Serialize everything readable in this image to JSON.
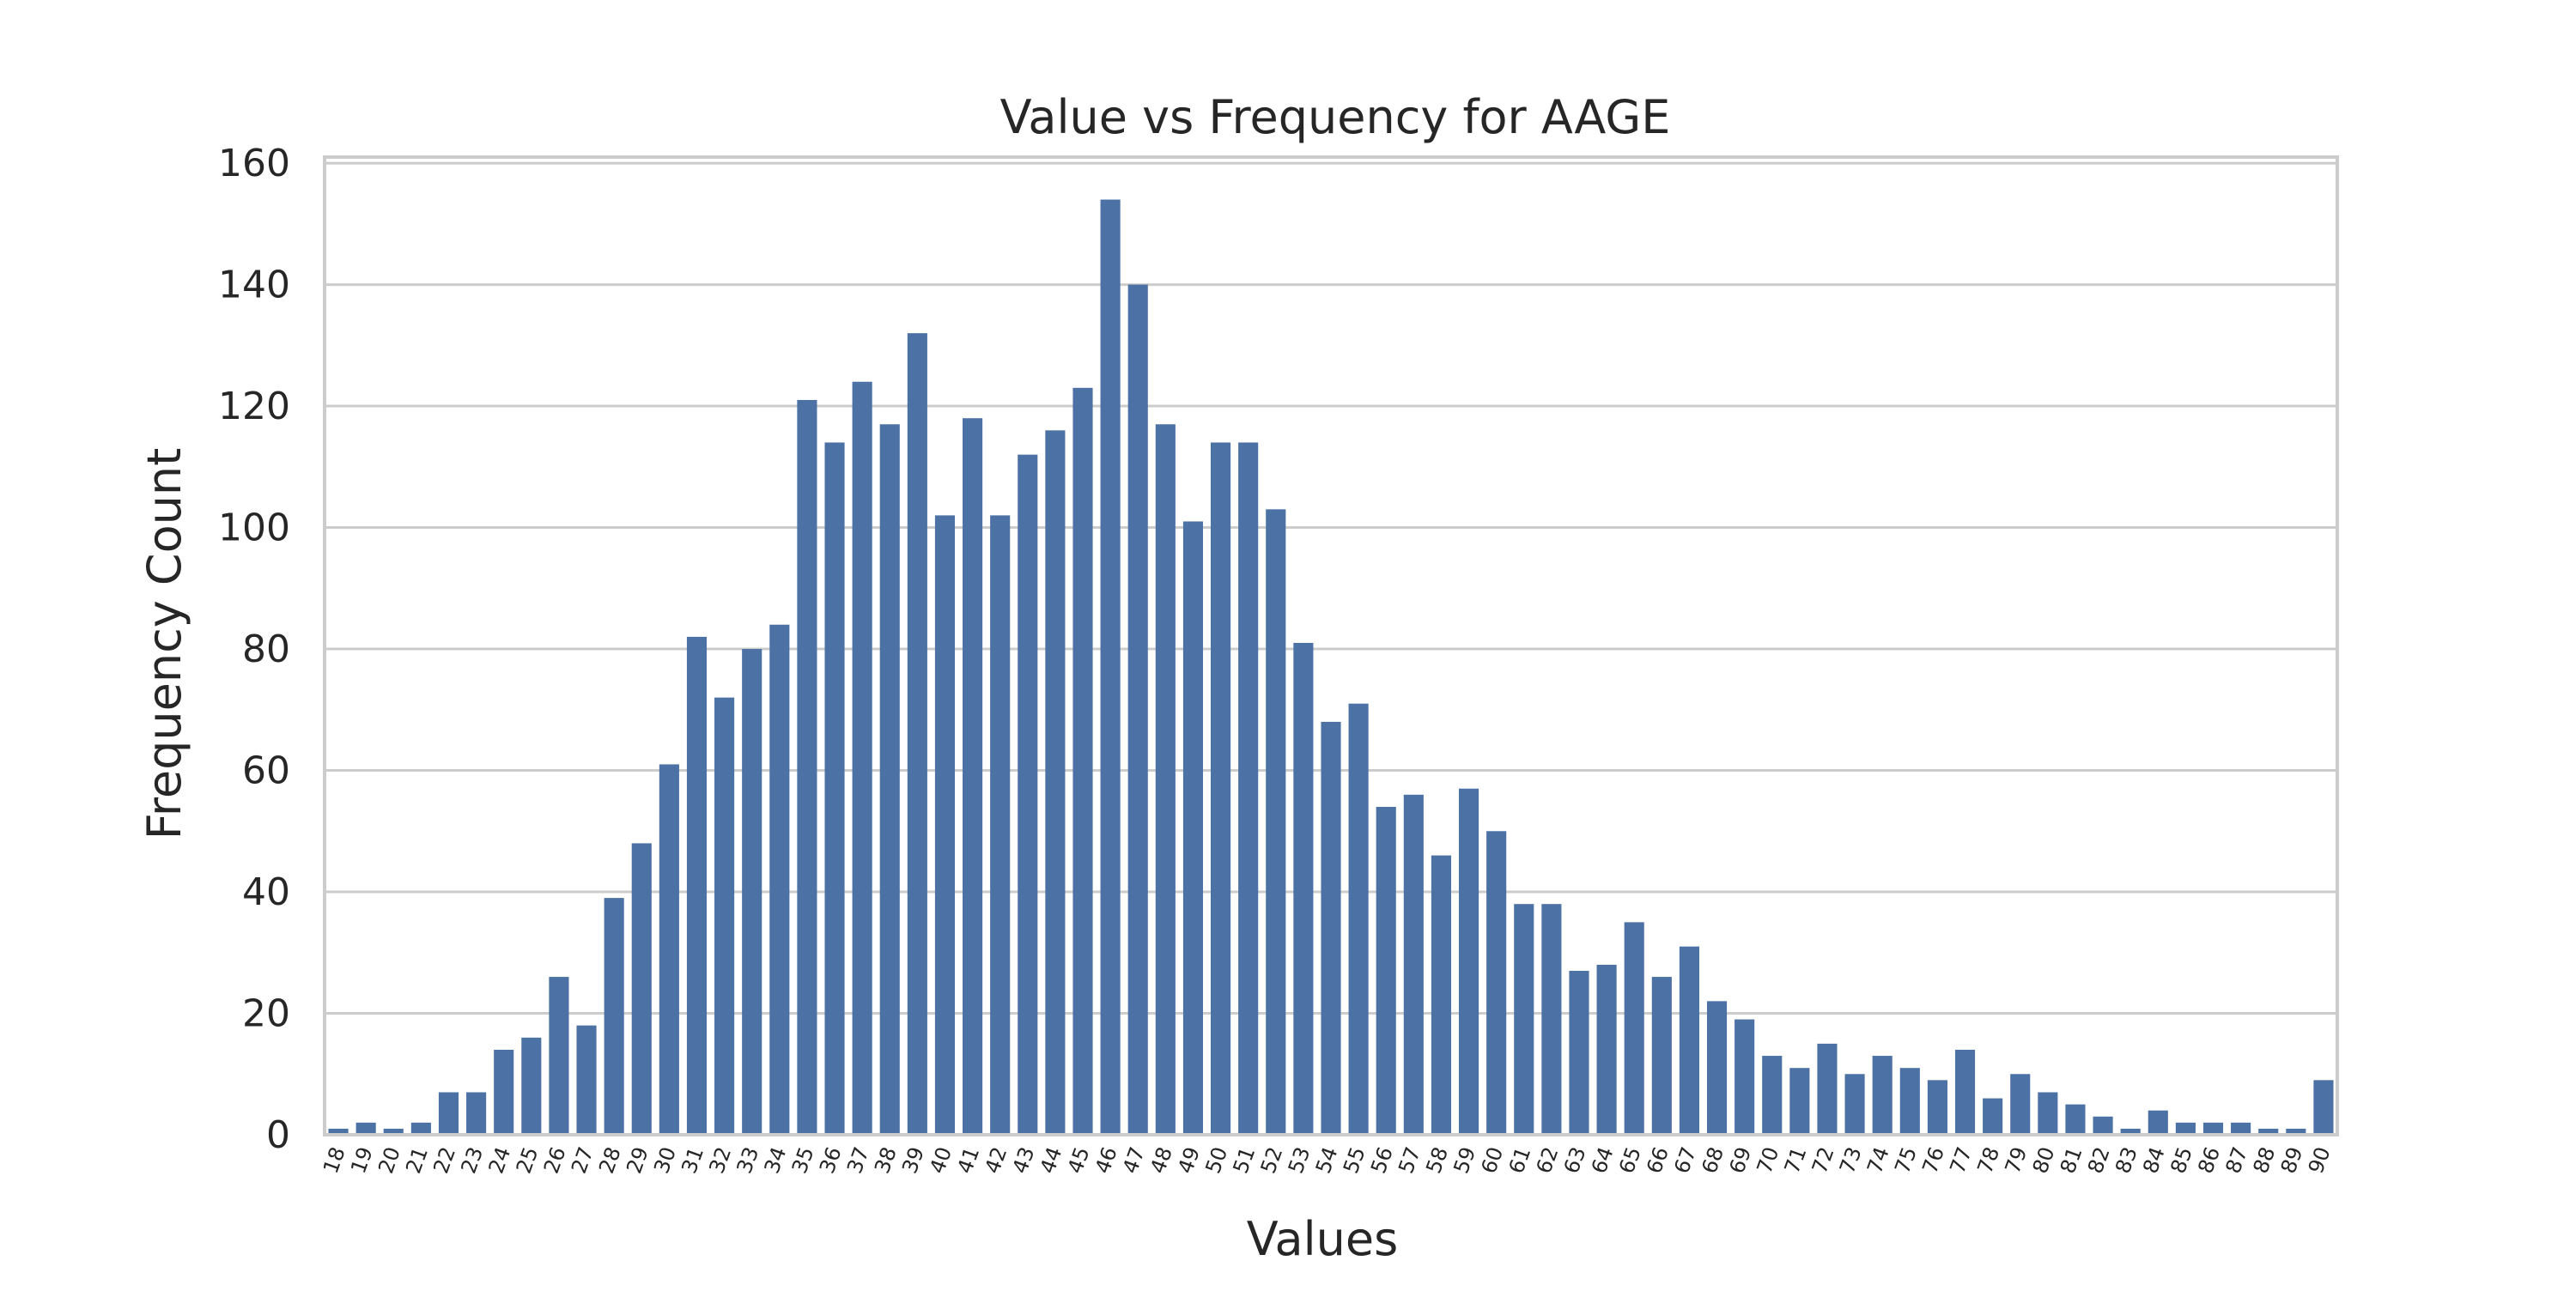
{
  "chart_data": {
    "type": "bar",
    "title": "Value vs Frequency for AAGE",
    "xlabel": "Values",
    "ylabel": "Frequency Count",
    "ylim": [
      0,
      161
    ],
    "yticks": [
      0,
      20,
      40,
      60,
      80,
      100,
      120,
      140,
      160
    ],
    "grid": "horizontal",
    "bar_color": "#4c72a5",
    "categories": [
      "18",
      "19",
      "20",
      "21",
      "22",
      "23",
      "24",
      "25",
      "26",
      "27",
      "28",
      "29",
      "30",
      "31",
      "32",
      "33",
      "34",
      "35",
      "36",
      "37",
      "38",
      "39",
      "40",
      "41",
      "42",
      "43",
      "44",
      "45",
      "46",
      "47",
      "48",
      "49",
      "50",
      "51",
      "52",
      "53",
      "54",
      "55",
      "56",
      "57",
      "58",
      "59",
      "60",
      "61",
      "62",
      "63",
      "64",
      "65",
      "66",
      "67",
      "68",
      "69",
      "70",
      "71",
      "72",
      "73",
      "74",
      "75",
      "76",
      "77",
      "78",
      "79",
      "80",
      "81",
      "82",
      "83",
      "84",
      "85",
      "86",
      "87",
      "88",
      "89",
      "90"
    ],
    "values": [
      1,
      2,
      1,
      2,
      7,
      7,
      14,
      16,
      26,
      18,
      39,
      48,
      61,
      82,
      72,
      80,
      84,
      121,
      114,
      124,
      117,
      132,
      102,
      118,
      102,
      112,
      116,
      123,
      154,
      140,
      117,
      101,
      114,
      114,
      103,
      81,
      68,
      71,
      54,
      56,
      46,
      57,
      50,
      38,
      38,
      27,
      28,
      35,
      26,
      31,
      22,
      19,
      13,
      11,
      15,
      10,
      13,
      11,
      9,
      14,
      6,
      10,
      7,
      5,
      3,
      1,
      4,
      2,
      2,
      2,
      1,
      1,
      9
    ]
  }
}
